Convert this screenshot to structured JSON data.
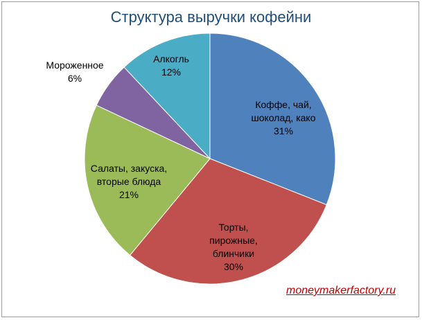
{
  "chart_data": {
    "type": "pie",
    "title": "Структура выручки кофейни",
    "start_angle_deg": 0,
    "direction": "clockwise",
    "slices": [
      {
        "label_lines": [
          "Коффе, чай,",
          "шоколад, како",
          "31%"
        ],
        "value": 31,
        "color": "#4f81bd"
      },
      {
        "label_lines": [
          "Торты,",
          "пирожные,",
          "блинчики",
          "30%"
        ],
        "value": 30,
        "color": "#c0504d"
      },
      {
        "label_lines": [
          "Салаты, закуска,",
          "вторые блюда",
          "21%"
        ],
        "value": 21,
        "color": "#9bbb59"
      },
      {
        "label_lines": [
          "Мороженное",
          "6%"
        ],
        "value": 6,
        "color": "#8064a2"
      },
      {
        "label_lines": [
          "Алкогль",
          "12%"
        ],
        "value": 12,
        "color": "#4bacc6"
      }
    ]
  },
  "watermark": "moneymakerfactory.ru"
}
